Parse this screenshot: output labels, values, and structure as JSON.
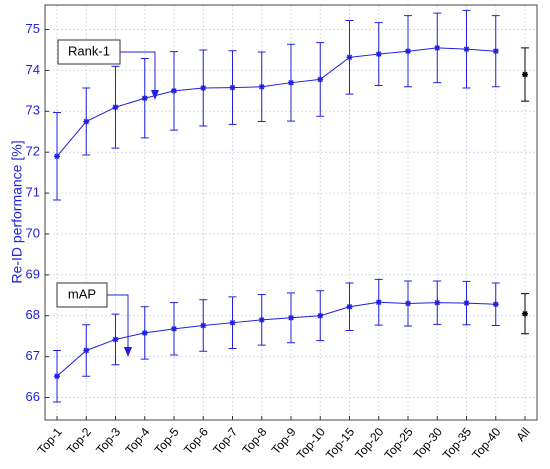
{
  "chart_data": {
    "type": "errorbar_line",
    "y_label": "Re-ID performance [%]",
    "categories": [
      "Top-1",
      "Top-2",
      "Top-3",
      "Top-4",
      "Top-5",
      "Top-6",
      "Top-7",
      "Top-8",
      "Top-9",
      "Top-10",
      "Top-15",
      "Top-20",
      "Top-25",
      "Top-30",
      "Top-35",
      "Top-40",
      "All"
    ],
    "series": [
      {
        "name": "Rank-1",
        "color": "#2020e0",
        "values": [
          71.9,
          72.75,
          73.1,
          73.32,
          73.5,
          73.57,
          73.58,
          73.6,
          73.7,
          73.78,
          74.32,
          74.4,
          74.47,
          74.55,
          74.52,
          74.47,
          73.9
        ],
        "errors": [
          1.07,
          0.82,
          1.0,
          0.97,
          0.96,
          0.93,
          0.9,
          0.85,
          0.94,
          0.9,
          0.9,
          0.77,
          0.87,
          0.85,
          0.95,
          0.87,
          0.65
        ]
      },
      {
        "name": "mAP",
        "color": "#2020e0",
        "values": [
          66.52,
          67.15,
          67.42,
          67.58,
          67.68,
          67.76,
          67.83,
          67.9,
          67.95,
          68.0,
          68.22,
          68.33,
          68.3,
          68.32,
          68.31,
          68.28,
          68.05
        ],
        "errors": [
          0.63,
          0.63,
          0.62,
          0.64,
          0.64,
          0.63,
          0.63,
          0.62,
          0.61,
          0.61,
          0.58,
          0.56,
          0.55,
          0.53,
          0.53,
          0.52,
          0.49
        ]
      }
    ],
    "last_point_color": "#000000",
    "connect_last_point": false,
    "ylim": [
      65.45,
      75.6
    ],
    "yticks": [
      66,
      67,
      68,
      69,
      70,
      71,
      72,
      73,
      74,
      75
    ],
    "grid": true
  }
}
